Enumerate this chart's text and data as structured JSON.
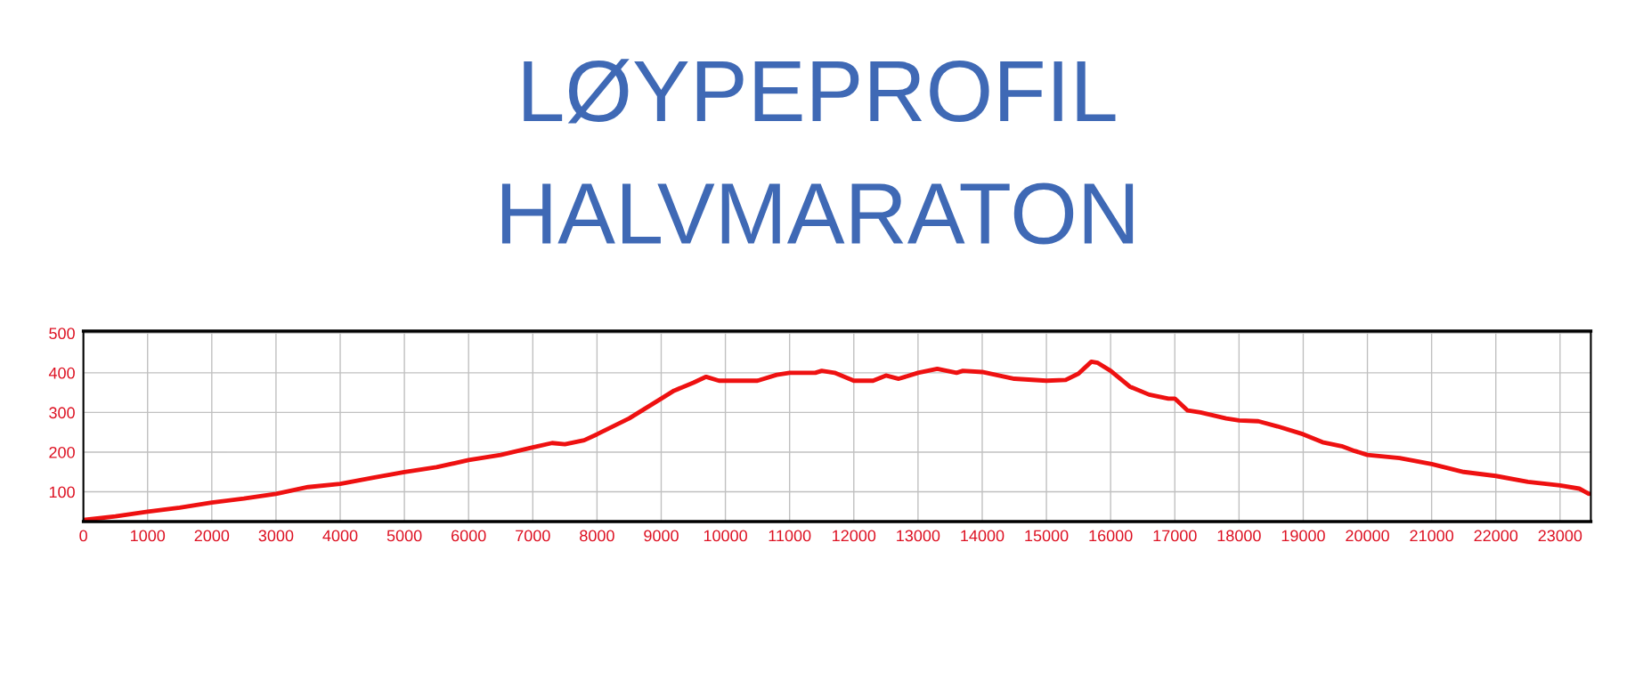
{
  "chart_data": {
    "type": "line",
    "title": "LØYPEPROFIL",
    "subtitle": "HALVMARATON",
    "x": [
      0,
      500,
      1000,
      1500,
      2000,
      2500,
      3000,
      3500,
      4000,
      4500,
      5000,
      5500,
      6000,
      6500,
      7000,
      7300,
      7500,
      7800,
      8000,
      8500,
      9000,
      9200,
      9500,
      9700,
      9900,
      10500,
      10800,
      11000,
      11400,
      11500,
      11700,
      12000,
      12300,
      12500,
      12700,
      13000,
      13300,
      13600,
      13700,
      14000,
      14500,
      15000,
      15300,
      15500,
      15700,
      15800,
      16000,
      16300,
      16600,
      16900,
      17000,
      17200,
      17400,
      17800,
      18000,
      18300,
      18600,
      19000,
      19300,
      19600,
      19800,
      20000,
      20500,
      21000,
      21500,
      22000,
      22500,
      23000,
      23300,
      23450
    ],
    "series": [
      {
        "color": "#ee1111",
        "values": [
          29,
          38,
          50,
          60,
          73,
          83,
          95,
          112,
          120,
          135,
          150,
          162,
          180,
          193,
          212,
          223,
          220,
          230,
          245,
          285,
          335,
          355,
          375,
          390,
          380,
          380,
          395,
          400,
          400,
          405,
          400,
          380,
          380,
          393,
          385,
          400,
          410,
          400,
          405,
          402,
          385,
          380,
          382,
          398,
          428,
          425,
          405,
          365,
          345,
          335,
          335,
          305,
          300,
          285,
          280,
          278,
          265,
          245,
          225,
          215,
          203,
          193,
          185,
          170,
          150,
          140,
          125,
          116,
          108,
          95
        ]
      }
    ],
    "xlim": [
      0,
      23480
    ],
    "ylim": [
      25,
      505
    ],
    "xticks": [
      0,
      1000,
      2000,
      3000,
      4000,
      5000,
      6000,
      7000,
      8000,
      9000,
      10000,
      11000,
      12000,
      13000,
      14000,
      15000,
      16000,
      17000,
      18000,
      19000,
      20000,
      21000,
      22000,
      23000
    ],
    "yticks": [
      100,
      200,
      300,
      400,
      500
    ],
    "grid": true,
    "marker": "none",
    "line_style": "solid"
  }
}
